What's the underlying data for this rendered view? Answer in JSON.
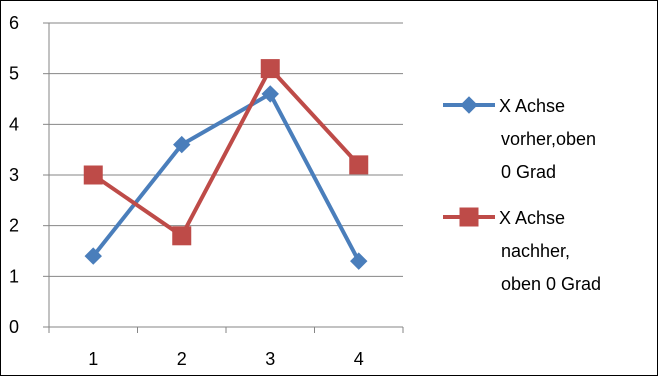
{
  "chart_data": {
    "type": "line",
    "title": "",
    "xlabel": "",
    "ylabel": "",
    "x": [
      1,
      2,
      3,
      4
    ],
    "categories": [
      "1",
      "2",
      "3",
      "4"
    ],
    "ylim": [
      0,
      6
    ],
    "yticks": [
      "0",
      "1",
      "2",
      "3",
      "4",
      "5",
      "6"
    ],
    "grid": "horizontal",
    "legend_position": "right",
    "series": [
      {
        "name": "X Achse vorher,oben 0 Grad",
        "name_lines": [
          "X Achse",
          "vorher,oben",
          "0 Grad"
        ],
        "values": [
          1.4,
          3.6,
          4.6,
          1.3
        ],
        "color": "#4a7ebb",
        "marker": "diamond"
      },
      {
        "name": "X Achse nachher, oben 0 Grad",
        "name_lines": [
          "X Achse",
          "nachher,",
          "oben 0 Grad"
        ],
        "values": [
          3.0,
          1.8,
          5.1,
          3.2
        ],
        "color": "#be4b48",
        "marker": "square"
      }
    ]
  }
}
